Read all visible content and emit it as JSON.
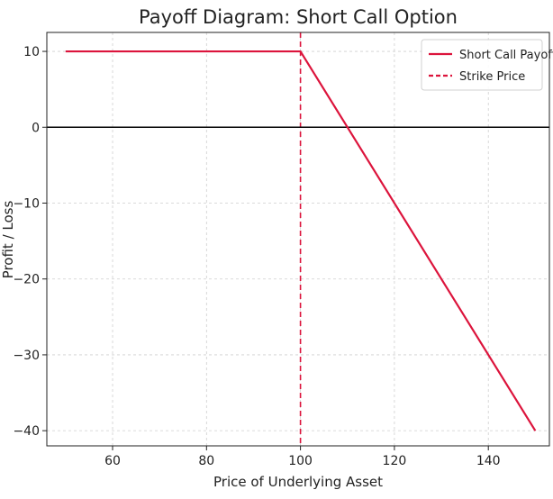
{
  "chart_data": {
    "type": "line",
    "title": "Payoff Diagram: Short Call Option",
    "xlabel": "Price of Underlying Asset",
    "ylabel": "Profit / Loss",
    "xlim": [
      46,
      153
    ],
    "ylim": [
      -42,
      12.5
    ],
    "xticks": [
      60,
      80,
      100,
      120,
      140
    ],
    "yticks": [
      10,
      0,
      -10,
      -20,
      -30,
      -40
    ],
    "grid": true,
    "legend_position": "top-right",
    "series": [
      {
        "name": "Short Call Payoff",
        "color": "#dc143c",
        "style": "solid",
        "x": [
          50,
          100,
          150
        ],
        "y": [
          10,
          10,
          -40
        ]
      }
    ],
    "reference_lines": [
      {
        "name": "Strike Price",
        "orientation": "vertical",
        "value": 100,
        "color": "#dc143c",
        "style": "dashed"
      },
      {
        "orientation": "horizontal",
        "value": 0,
        "color": "#000000",
        "style": "solid"
      }
    ]
  }
}
